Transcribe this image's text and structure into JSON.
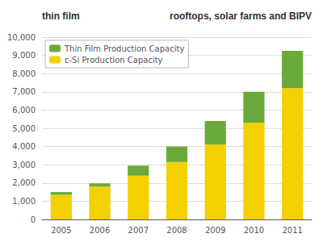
{
  "chart_data": {
    "type": "bar",
    "stacked": true,
    "categories": [
      "2005",
      "2006",
      "2007",
      "2008",
      "2009",
      "2010",
      "2011"
    ],
    "series": [
      {
        "name": "c-Si Production Capacity",
        "color": "#F5D000",
        "values": [
          1350,
          1800,
          2400,
          3150,
          4100,
          5300,
          7200
        ]
      },
      {
        "name": "Thin Film Production Capacity",
        "color": "#6aaa3a",
        "values": [
          150,
          180,
          550,
          850,
          1300,
          1700,
          2050
        ]
      }
    ],
    "ylim": [
      0,
      10000
    ],
    "yticks": [
      0,
      {
        "value": 1000,
        "label": "1,000"
      },
      {
        "value": 2000,
        "label": "2,000"
      },
      {
        "value": 3000,
        "label": "3,000"
      },
      {
        "value": 4000,
        "label": "4,000"
      },
      {
        "value": 5000,
        "label": "5,000"
      },
      {
        "value": 6000,
        "label": "6,000"
      },
      {
        "value": 7000,
        "label": "7,000"
      },
      {
        "value": 8000,
        "label": "8,000"
      },
      {
        "value": 9000,
        "label": "9,000"
      },
      {
        "value": 10000,
        "label": "10,000"
      }
    ],
    "grid": true,
    "legend": "upper left",
    "annotations": [
      "thin film",
      "rooftops, solar farms and BIPV"
    ]
  }
}
